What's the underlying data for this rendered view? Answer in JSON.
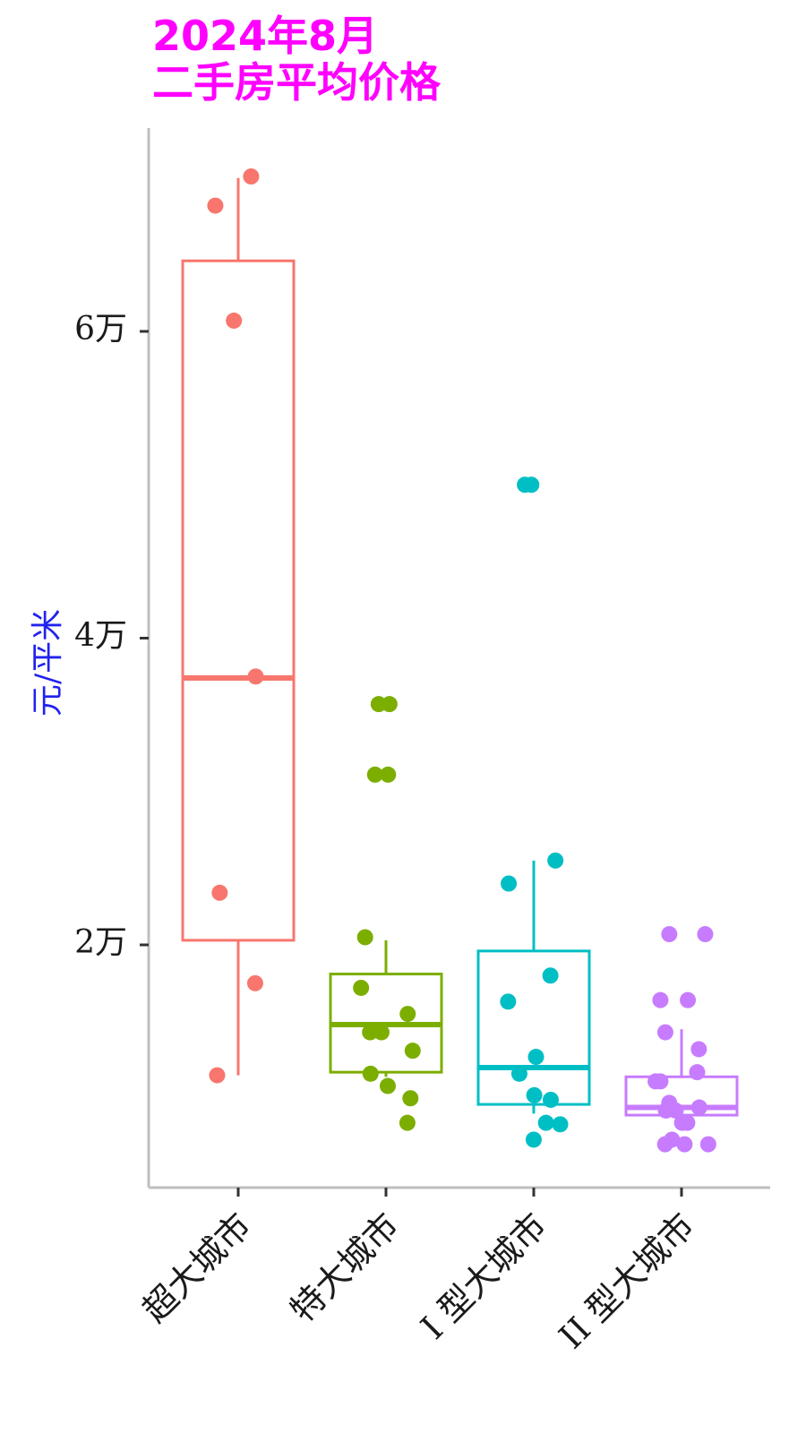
{
  "chart_data": {
    "type": "box",
    "title_lines": [
      "2024年8月",
      "二手房平均价格"
    ],
    "title_color": "#FF00FF",
    "ylabel": "元/平米",
    "ylabel_color": "#2222EE",
    "xlabel": "",
    "ylim": [
      7000,
      72000
    ],
    "y_ticks": [
      {
        "value": 20000,
        "label": "2万"
      },
      {
        "value": 40000,
        "label": "4万"
      },
      {
        "value": 60000,
        "label": "6万"
      }
    ],
    "grid": false,
    "legend": "none",
    "categories": [
      "超大城市",
      "特大城市",
      "I 型大城市",
      "II 型大城市"
    ],
    "colors": [
      "#F8766D",
      "#7CAE00",
      "#00BFC4",
      "#C77CFF"
    ],
    "boxes": [
      {
        "name": "超大城市",
        "lower_whisker": 11500,
        "q1": 20300,
        "median": 37400,
        "q3": 64600,
        "upper_whisker": 70000
      },
      {
        "name": "特大城市",
        "lower_whisker": 11400,
        "q1": 11700,
        "median": 14800,
        "q3": 18100,
        "upper_whisker": 20300
      },
      {
        "name": "I 型大城市",
        "lower_whisker": 9000,
        "q1": 9600,
        "median": 12000,
        "q3": 19600,
        "upper_whisker": 25500
      },
      {
        "name": "II 型大城市",
        "lower_whisker": 8800,
        "q1": 8900,
        "median": 9400,
        "q3": 11400,
        "upper_whisker": 14500
      }
    ],
    "points": [
      [
        70100,
        68200,
        60700,
        37500,
        23400,
        17500,
        11500
      ],
      [
        35700,
        35700,
        31100,
        31100,
        20500,
        17200,
        15500,
        14300,
        14300,
        13100,
        11600,
        10800,
        10000,
        8400
      ],
      [
        50000,
        50000,
        25500,
        24000,
        18000,
        16300,
        12700,
        11600,
        10200,
        9900,
        8400,
        8300,
        7300
      ],
      [
        20700,
        20700,
        16400,
        16400,
        14300,
        13200,
        11700,
        11100,
        11100,
        9700,
        9400,
        9200,
        9200,
        8400,
        8400,
        7300,
        7000,
        7000,
        7000
      ]
    ]
  }
}
